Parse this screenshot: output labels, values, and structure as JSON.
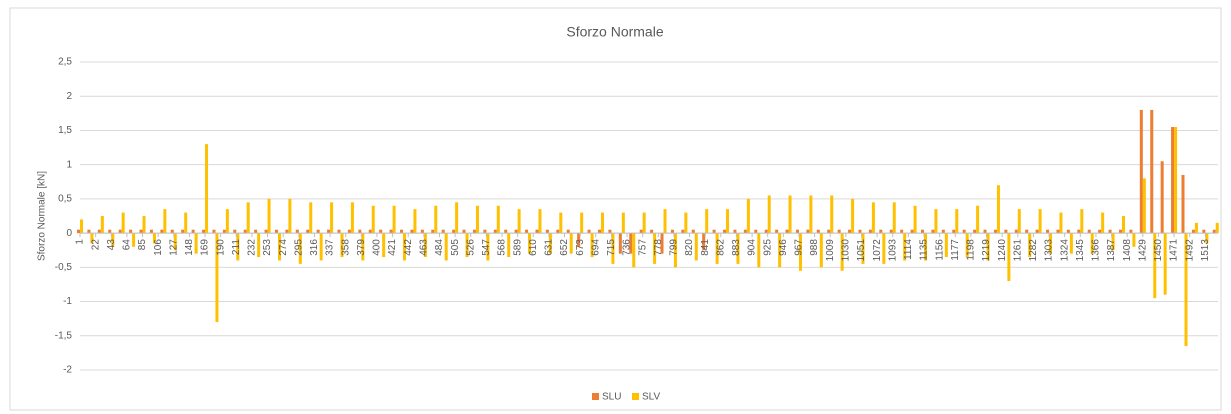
{
  "chart_data": {
    "type": "bar",
    "title": "Sforzo Normale",
    "y_label": "Sforzo Normale [kN]",
    "xlim": [
      1,
      1530
    ],
    "xticks": [
      1,
      22,
      43,
      64,
      85,
      106,
      127,
      148,
      169,
      190,
      211,
      232,
      253,
      274,
      295,
      316,
      337,
      358,
      379,
      400,
      421,
      442,
      463,
      484,
      505,
      526,
      547,
      568,
      589,
      610,
      631,
      652,
      673,
      694,
      715,
      736,
      757,
      778,
      799,
      820,
      841,
      862,
      883,
      904,
      925,
      946,
      967,
      988,
      1009,
      1030,
      1051,
      1072,
      1093,
      1114,
      1135,
      1156,
      1177,
      1198,
      1219,
      1240,
      1261,
      1282,
      1303,
      1324,
      1345,
      1366,
      1387,
      1408,
      1429,
      1450,
      1471,
      1492,
      1513
    ],
    "x": [
      1,
      15,
      29,
      43,
      57,
      71,
      85,
      99,
      113,
      127,
      141,
      155,
      169,
      183,
      197,
      211,
      225,
      239,
      253,
      267,
      281,
      295,
      309,
      323,
      337,
      351,
      365,
      379,
      393,
      407,
      421,
      435,
      449,
      463,
      477,
      491,
      505,
      519,
      533,
      547,
      561,
      575,
      589,
      603,
      617,
      631,
      645,
      659,
      673,
      687,
      701,
      715,
      729,
      743,
      757,
      771,
      785,
      799,
      813,
      827,
      841,
      855,
      869,
      883,
      897,
      911,
      925,
      939,
      953,
      967,
      981,
      995,
      1009,
      1023,
      1037,
      1051,
      1065,
      1079,
      1093,
      1107,
      1121,
      1135,
      1149,
      1163,
      1177,
      1191,
      1205,
      1219,
      1233,
      1247,
      1261,
      1275,
      1289,
      1303,
      1317,
      1331,
      1345,
      1359,
      1373,
      1387,
      1401,
      1415,
      1429,
      1443,
      1457,
      1471,
      1485,
      1499,
      1513,
      1527
    ],
    "series": [
      {
        "name": "SLU",
        "color": "#ed7d31",
        "values": [
          0.05,
          0.05,
          0.05,
          0.05,
          0.05,
          0.05,
          0.05,
          0.05,
          0.05,
          0.05,
          0.05,
          0.05,
          0.05,
          0.05,
          0.05,
          0.05,
          0.05,
          0.05,
          0.05,
          0.05,
          0.05,
          0.05,
          0.05,
          0.05,
          0.05,
          0.05,
          0.05,
          0.05,
          0.05,
          0.05,
          0.05,
          0.05,
          0.05,
          0.05,
          0.05,
          0.05,
          0.05,
          0.05,
          0.05,
          0.05,
          0.05,
          0.05,
          0.05,
          0.05,
          0.05,
          0.05,
          0.05,
          0.05,
          -0.2,
          0.05,
          0.05,
          0.05,
          -0.3,
          -0.3,
          0.05,
          0.05,
          -0.3,
          0.05,
          0.05,
          0.05,
          -0.25,
          0.05,
          0.05,
          0.05,
          0.05,
          0.05,
          0.05,
          0.05,
          0.05,
          0.05,
          0.05,
          0.05,
          0.05,
          0.05,
          0.05,
          0.05,
          0.05,
          0.05,
          0.05,
          0.05,
          0.05,
          0.05,
          0.05,
          0.05,
          0.05,
          0.05,
          0.05,
          0.05,
          0.05,
          0.05,
          0.05,
          0.05,
          0.05,
          0.05,
          0.05,
          0.05,
          0.05,
          0.05,
          0.05,
          0.05,
          0.05,
          0.05,
          1.8,
          1.8,
          1.05,
          1.55,
          0.85,
          0.05,
          0.05,
          0.05
        ]
      },
      {
        "name": "SLV",
        "color": "#ffc000",
        "values": [
          0.2,
          -0.15,
          0.25,
          -0.2,
          0.3,
          -0.2,
          0.25,
          -0.15,
          0.35,
          -0.25,
          0.3,
          -0.3,
          1.3,
          -1.3,
          0.35,
          -0.4,
          0.45,
          -0.35,
          0.5,
          -0.4,
          0.5,
          -0.45,
          0.45,
          -0.4,
          0.45,
          -0.35,
          0.45,
          -0.4,
          0.4,
          -0.35,
          0.4,
          -0.4,
          0.35,
          -0.35,
          0.4,
          -0.4,
          0.45,
          -0.35,
          0.4,
          -0.4,
          0.4,
          -0.35,
          0.35,
          -0.3,
          0.35,
          -0.3,
          0.3,
          -0.3,
          0.3,
          -0.35,
          0.3,
          -0.45,
          0.3,
          -0.5,
          0.3,
          -0.45,
          0.35,
          -0.5,
          0.3,
          -0.4,
          0.35,
          -0.45,
          0.35,
          -0.45,
          0.5,
          -0.5,
          0.55,
          -0.5,
          0.55,
          -0.55,
          0.55,
          -0.5,
          0.55,
          -0.55,
          0.5,
          -0.45,
          0.45,
          -0.45,
          0.45,
          -0.4,
          0.4,
          -0.4,
          0.35,
          -0.35,
          0.35,
          -0.35,
          0.4,
          -0.4,
          0.7,
          -0.7,
          0.35,
          -0.35,
          0.35,
          -0.3,
          0.3,
          -0.3,
          0.35,
          -0.3,
          0.3,
          -0.25,
          0.25,
          -0.2,
          0.8,
          -0.95,
          -0.9,
          1.55,
          -1.65,
          0.15,
          -0.15,
          0.15
        ]
      }
    ],
    "ylim": [
      -2,
      2.5
    ],
    "yticks": [
      {
        "value": 2.5,
        "label": "2,5"
      },
      2,
      {
        "value": 1.5,
        "label": "1,5"
      },
      1,
      {
        "value": 0.5,
        "label": "0,5"
      },
      0,
      {
        "value": -0.5,
        "label": "-0,5"
      },
      -1,
      {
        "value": -1.5,
        "label": "-1,5"
      },
      -2
    ],
    "grid": true,
    "legend": "bottom"
  }
}
